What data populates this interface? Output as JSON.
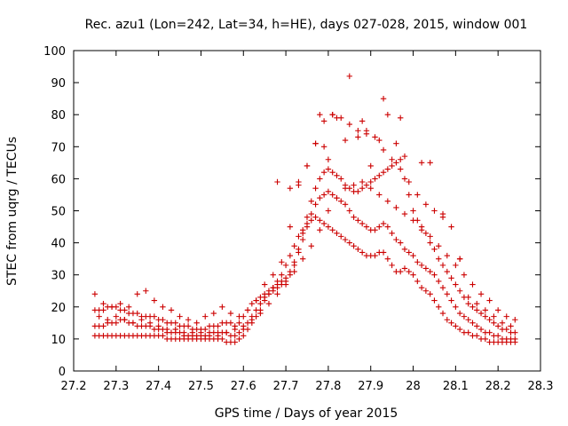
{
  "chart_data": {
    "type": "scatter",
    "title": "Rec. azu1 (Lon=242, Lat=34, h=HE), days 027-028, 2015, window 001",
    "xlabel": "GPS time / Days of year 2015",
    "ylabel": "STEC from uqrg / TECUs",
    "xlim": [
      27.2,
      28.3
    ],
    "ylim": [
      0,
      100
    ],
    "xticks": [
      27.2,
      27.3,
      27.4,
      27.5,
      27.6,
      27.7,
      27.8,
      27.9,
      28,
      28.1,
      28.2,
      28.3
    ],
    "xtick_labels": [
      "27.2",
      "27.3",
      "27.4",
      "27.5",
      "27.6",
      "27.7",
      "27.8",
      "27.9",
      "28",
      "28.1",
      "28.2",
      "28.3"
    ],
    "yticks": [
      0,
      10,
      20,
      30,
      40,
      50,
      60,
      70,
      80,
      90,
      100
    ],
    "ytick_labels": [
      "0",
      "10",
      "20",
      "30",
      "40",
      "50",
      "60",
      "70",
      "80",
      "90",
      "100"
    ],
    "grid": false,
    "legend": "none",
    "marker": "+",
    "color": "#cc0000",
    "series": [
      {
        "x": [
          27.25,
          27.26,
          27.27,
          27.28,
          27.29,
          27.3,
          27.31,
          27.32,
          27.33,
          27.34,
          27.35,
          27.36,
          27.37,
          27.38,
          27.39,
          27.4,
          27.41,
          27.42,
          27.43,
          27.44,
          27.45,
          27.46,
          27.47,
          27.48,
          27.49,
          27.5,
          27.51,
          27.52,
          27.53,
          27.54,
          27.55,
          27.56,
          27.57,
          27.58,
          27.59,
          27.6,
          27.61,
          27.62,
          27.63,
          27.64,
          27.65,
          27.66,
          27.67,
          27.68,
          27.69,
          27.7,
          27.71,
          27.72,
          27.73,
          27.74,
          27.75,
          27.76,
          27.77,
          27.78,
          27.79,
          27.8,
          27.81,
          27.82,
          27.83,
          27.84,
          27.85,
          27.86,
          27.87,
          27.88,
          27.89,
          27.9,
          27.91,
          27.92,
          27.93,
          27.94,
          27.95,
          27.96,
          27.97,
          27.98,
          27.99,
          28.0,
          28.01,
          28.02,
          28.03,
          28.04,
          28.05,
          28.06,
          28.07,
          28.08,
          28.09,
          28.1,
          28.11,
          28.12,
          28.13,
          28.14,
          28.15,
          28.16,
          28.17,
          28.18,
          28.19,
          28.2,
          28.21,
          28.22,
          28.23,
          28.24
        ],
        "y": [
          11,
          11,
          11,
          11,
          11,
          11,
          11,
          11,
          11,
          11,
          11,
          11,
          11,
          11,
          11,
          11,
          11,
          10,
          10,
          10,
          10,
          10,
          10,
          10,
          10,
          10,
          10,
          10,
          10,
          10,
          10,
          9,
          9,
          9,
          10,
          11,
          13,
          15,
          17,
          19,
          22,
          24,
          26,
          28,
          30,
          33,
          36,
          39,
          42,
          44,
          46,
          47,
          48,
          47,
          46,
          45,
          44,
          43,
          42,
          41,
          40,
          39,
          38,
          37,
          36,
          36,
          36,
          37,
          37,
          35,
          33,
          31,
          31,
          32,
          31,
          30,
          28,
          26,
          25,
          24,
          22,
          20,
          18,
          16,
          15,
          14,
          13,
          12,
          12,
          11,
          11,
          10,
          10,
          9,
          9,
          9,
          9,
          9,
          9,
          9
        ]
      },
      {
        "x": [
          27.25,
          27.26,
          27.27,
          27.28,
          27.29,
          27.3,
          27.31,
          27.32,
          27.33,
          27.34,
          27.35,
          27.36,
          27.37,
          27.38,
          27.39,
          27.4,
          27.41,
          27.42,
          27.43,
          27.44,
          27.45,
          27.46,
          27.47,
          27.48,
          27.49,
          27.5,
          27.51,
          27.52,
          27.53,
          27.54,
          27.55,
          27.56,
          27.57,
          27.58,
          27.59,
          27.6,
          27.61,
          27.62,
          27.63,
          27.64,
          27.65,
          27.66,
          27.67,
          27.68,
          27.69,
          27.7,
          27.71,
          27.72,
          27.73,
          27.74,
          27.75,
          27.76,
          27.77,
          27.78,
          27.79,
          27.8,
          27.81,
          27.82,
          27.83,
          27.84,
          27.85,
          27.86,
          27.87,
          27.88,
          27.89,
          27.9,
          27.91,
          27.92,
          27.93,
          27.94,
          27.95,
          27.96,
          27.97,
          27.98,
          27.99,
          28.0,
          28.01,
          28.02,
          28.03,
          28.04,
          28.05,
          28.06,
          28.07,
          28.08,
          28.09,
          28.1,
          28.11,
          28.12,
          28.13,
          28.14,
          28.15,
          28.16,
          28.17,
          28.18,
          28.19,
          28.2,
          28.21,
          28.22,
          28.23,
          28.24
        ],
        "y": [
          14,
          14,
          14,
          15,
          15,
          15,
          16,
          16,
          15,
          15,
          14,
          14,
          14,
          14,
          13,
          13,
          13,
          12,
          12,
          12,
          12,
          11,
          11,
          11,
          11,
          11,
          11,
          12,
          12,
          12,
          12,
          12,
          11,
          11,
          12,
          13,
          15,
          17,
          19,
          21,
          23,
          24,
          25,
          26,
          27,
          28,
          30,
          33,
          37,
          41,
          45,
          49,
          52,
          54,
          55,
          56,
          55,
          54,
          53,
          52,
          50,
          48,
          47,
          46,
          45,
          44,
          44,
          45,
          46,
          45,
          43,
          41,
          40,
          38,
          37,
          36,
          34,
          33,
          32,
          31,
          30,
          28,
          26,
          24,
          22,
          20,
          18,
          17,
          16,
          15,
          14,
          13,
          12,
          12,
          11,
          11,
          10,
          10,
          10,
          10
        ]
      },
      {
        "x": [
          27.25,
          27.26,
          27.27,
          27.28,
          27.29,
          27.3,
          27.31,
          27.32,
          27.33,
          27.34,
          27.35,
          27.36,
          27.37,
          27.38,
          27.39,
          27.4,
          27.41,
          27.42,
          27.43,
          27.44,
          27.45,
          27.46,
          27.47,
          27.48,
          27.49,
          27.5,
          27.51,
          27.52,
          27.53,
          27.54,
          27.55,
          27.56,
          27.57,
          27.58,
          27.59,
          27.6,
          27.61,
          27.62,
          27.63,
          27.64,
          27.65,
          27.66,
          27.67,
          27.68,
          27.69,
          27.7,
          27.71,
          27.72,
          27.73,
          27.74,
          27.75,
          27.76,
          27.77,
          27.78,
          27.79,
          27.8,
          27.81,
          27.82,
          27.83,
          27.84,
          27.85,
          27.86,
          27.87,
          27.88,
          27.89,
          27.9,
          27.91,
          27.92,
          27.93,
          27.94,
          27.95,
          27.96,
          27.97,
          27.98,
          27.99,
          28.0,
          28.01,
          28.02,
          28.03,
          28.04,
          28.05,
          28.06,
          28.07,
          28.08,
          28.09,
          28.1,
          28.11,
          28.12,
          28.13,
          28.14,
          28.15,
          28.16,
          28.17,
          28.18,
          28.19,
          28.2,
          28.21,
          28.22,
          28.23,
          28.24
        ],
        "y": [
          19,
          19,
          19,
          20,
          20,
          20,
          19,
          19,
          18,
          18,
          18,
          17,
          17,
          17,
          17,
          16,
          16,
          15,
          15,
          15,
          14,
          14,
          14,
          13,
          13,
          13,
          13,
          14,
          14,
          14,
          15,
          15,
          15,
          14,
          15,
          17,
          19,
          21,
          22,
          23,
          24,
          25,
          26,
          27,
          28,
          29,
          31,
          34,
          38,
          43,
          48,
          53,
          57,
          60,
          62,
          63,
          62,
          61,
          60,
          58,
          57,
          56,
          56,
          57,
          58,
          59,
          60,
          61,
          62,
          63,
          64,
          65,
          66,
          60,
          55,
          50,
          47,
          45,
          43,
          40,
          38,
          35,
          33,
          31,
          29,
          27,
          25,
          23,
          21,
          20,
          19,
          18,
          17,
          16,
          15,
          14,
          13,
          13,
          12,
          12
        ]
      },
      {
        "x": [
          27.25,
          27.27,
          27.29,
          27.31,
          27.33,
          27.35,
          27.37,
          27.39,
          27.41,
          27.43,
          27.45,
          27.47,
          27.49,
          27.51,
          27.53,
          27.55,
          27.57,
          27.59,
          27.61,
          27.63,
          27.65,
          27.67,
          27.69,
          27.71,
          27.73,
          27.75,
          27.77,
          27.79,
          27.81,
          27.83,
          27.85,
          27.87,
          27.89,
          27.91,
          27.93,
          27.95,
          27.97,
          27.99,
          28.01,
          28.03,
          28.05,
          28.07,
          28.09,
          28.11,
          28.13,
          28.15,
          28.17,
          28.19,
          28.21,
          28.23
        ],
        "y": [
          24,
          21,
          20,
          21,
          20,
          24,
          25,
          22,
          20,
          19,
          17,
          16,
          15,
          17,
          18,
          20,
          18,
          17,
          19,
          22,
          27,
          30,
          34,
          45,
          58,
          64,
          71,
          78,
          80,
          79,
          77,
          75,
          74,
          73,
          69,
          66,
          63,
          59,
          55,
          52,
          50,
          48,
          45,
          35,
          23,
          21,
          19,
          17,
          15,
          14
        ]
      },
      {
        "x": [
          27.26,
          27.28,
          27.3,
          27.32,
          27.34,
          27.36,
          27.38,
          27.4,
          27.42,
          27.44,
          27.46,
          27.48,
          27.5,
          27.52,
          27.54,
          27.56,
          27.58,
          27.6,
          27.62,
          27.64,
          27.66,
          27.68,
          27.7,
          27.72,
          27.74,
          27.76,
          27.78,
          27.8,
          27.82,
          27.84,
          27.86,
          27.88,
          27.9,
          27.92,
          27.94,
          27.96,
          27.98,
          28.0,
          28.02,
          28.04,
          28.06,
          28.08,
          28.1,
          28.12,
          28.14,
          28.16,
          28.18,
          28.2,
          28.22,
          28.24
        ],
        "y": [
          17,
          16,
          17,
          16,
          15,
          16,
          15,
          14,
          13,
          13,
          12,
          12,
          12,
          11,
          11,
          12,
          13,
          14,
          16,
          18,
          21,
          24,
          27,
          31,
          35,
          39,
          44,
          50,
          54,
          57,
          58,
          59,
          57,
          55,
          53,
          51,
          49,
          47,
          44,
          42,
          39,
          36,
          33,
          30,
          27,
          24,
          22,
          19,
          17,
          16
        ]
      },
      {
        "x": [
          27.68,
          27.71,
          27.73,
          27.75,
          27.77,
          27.78,
          27.79,
          27.8,
          27.81,
          27.82,
          27.84,
          27.85,
          27.87,
          27.88,
          27.89,
          27.9,
          27.92,
          27.93,
          27.94,
          27.96,
          27.97,
          27.98,
          28.02,
          28.04,
          28.07,
          28.11
        ],
        "y": [
          59,
          57,
          59,
          64,
          71,
          80,
          70,
          66,
          80,
          79,
          72,
          92,
          73,
          78,
          75,
          64,
          72,
          85,
          80,
          71,
          79,
          67,
          65,
          65,
          49,
          35
        ]
      }
    ]
  }
}
